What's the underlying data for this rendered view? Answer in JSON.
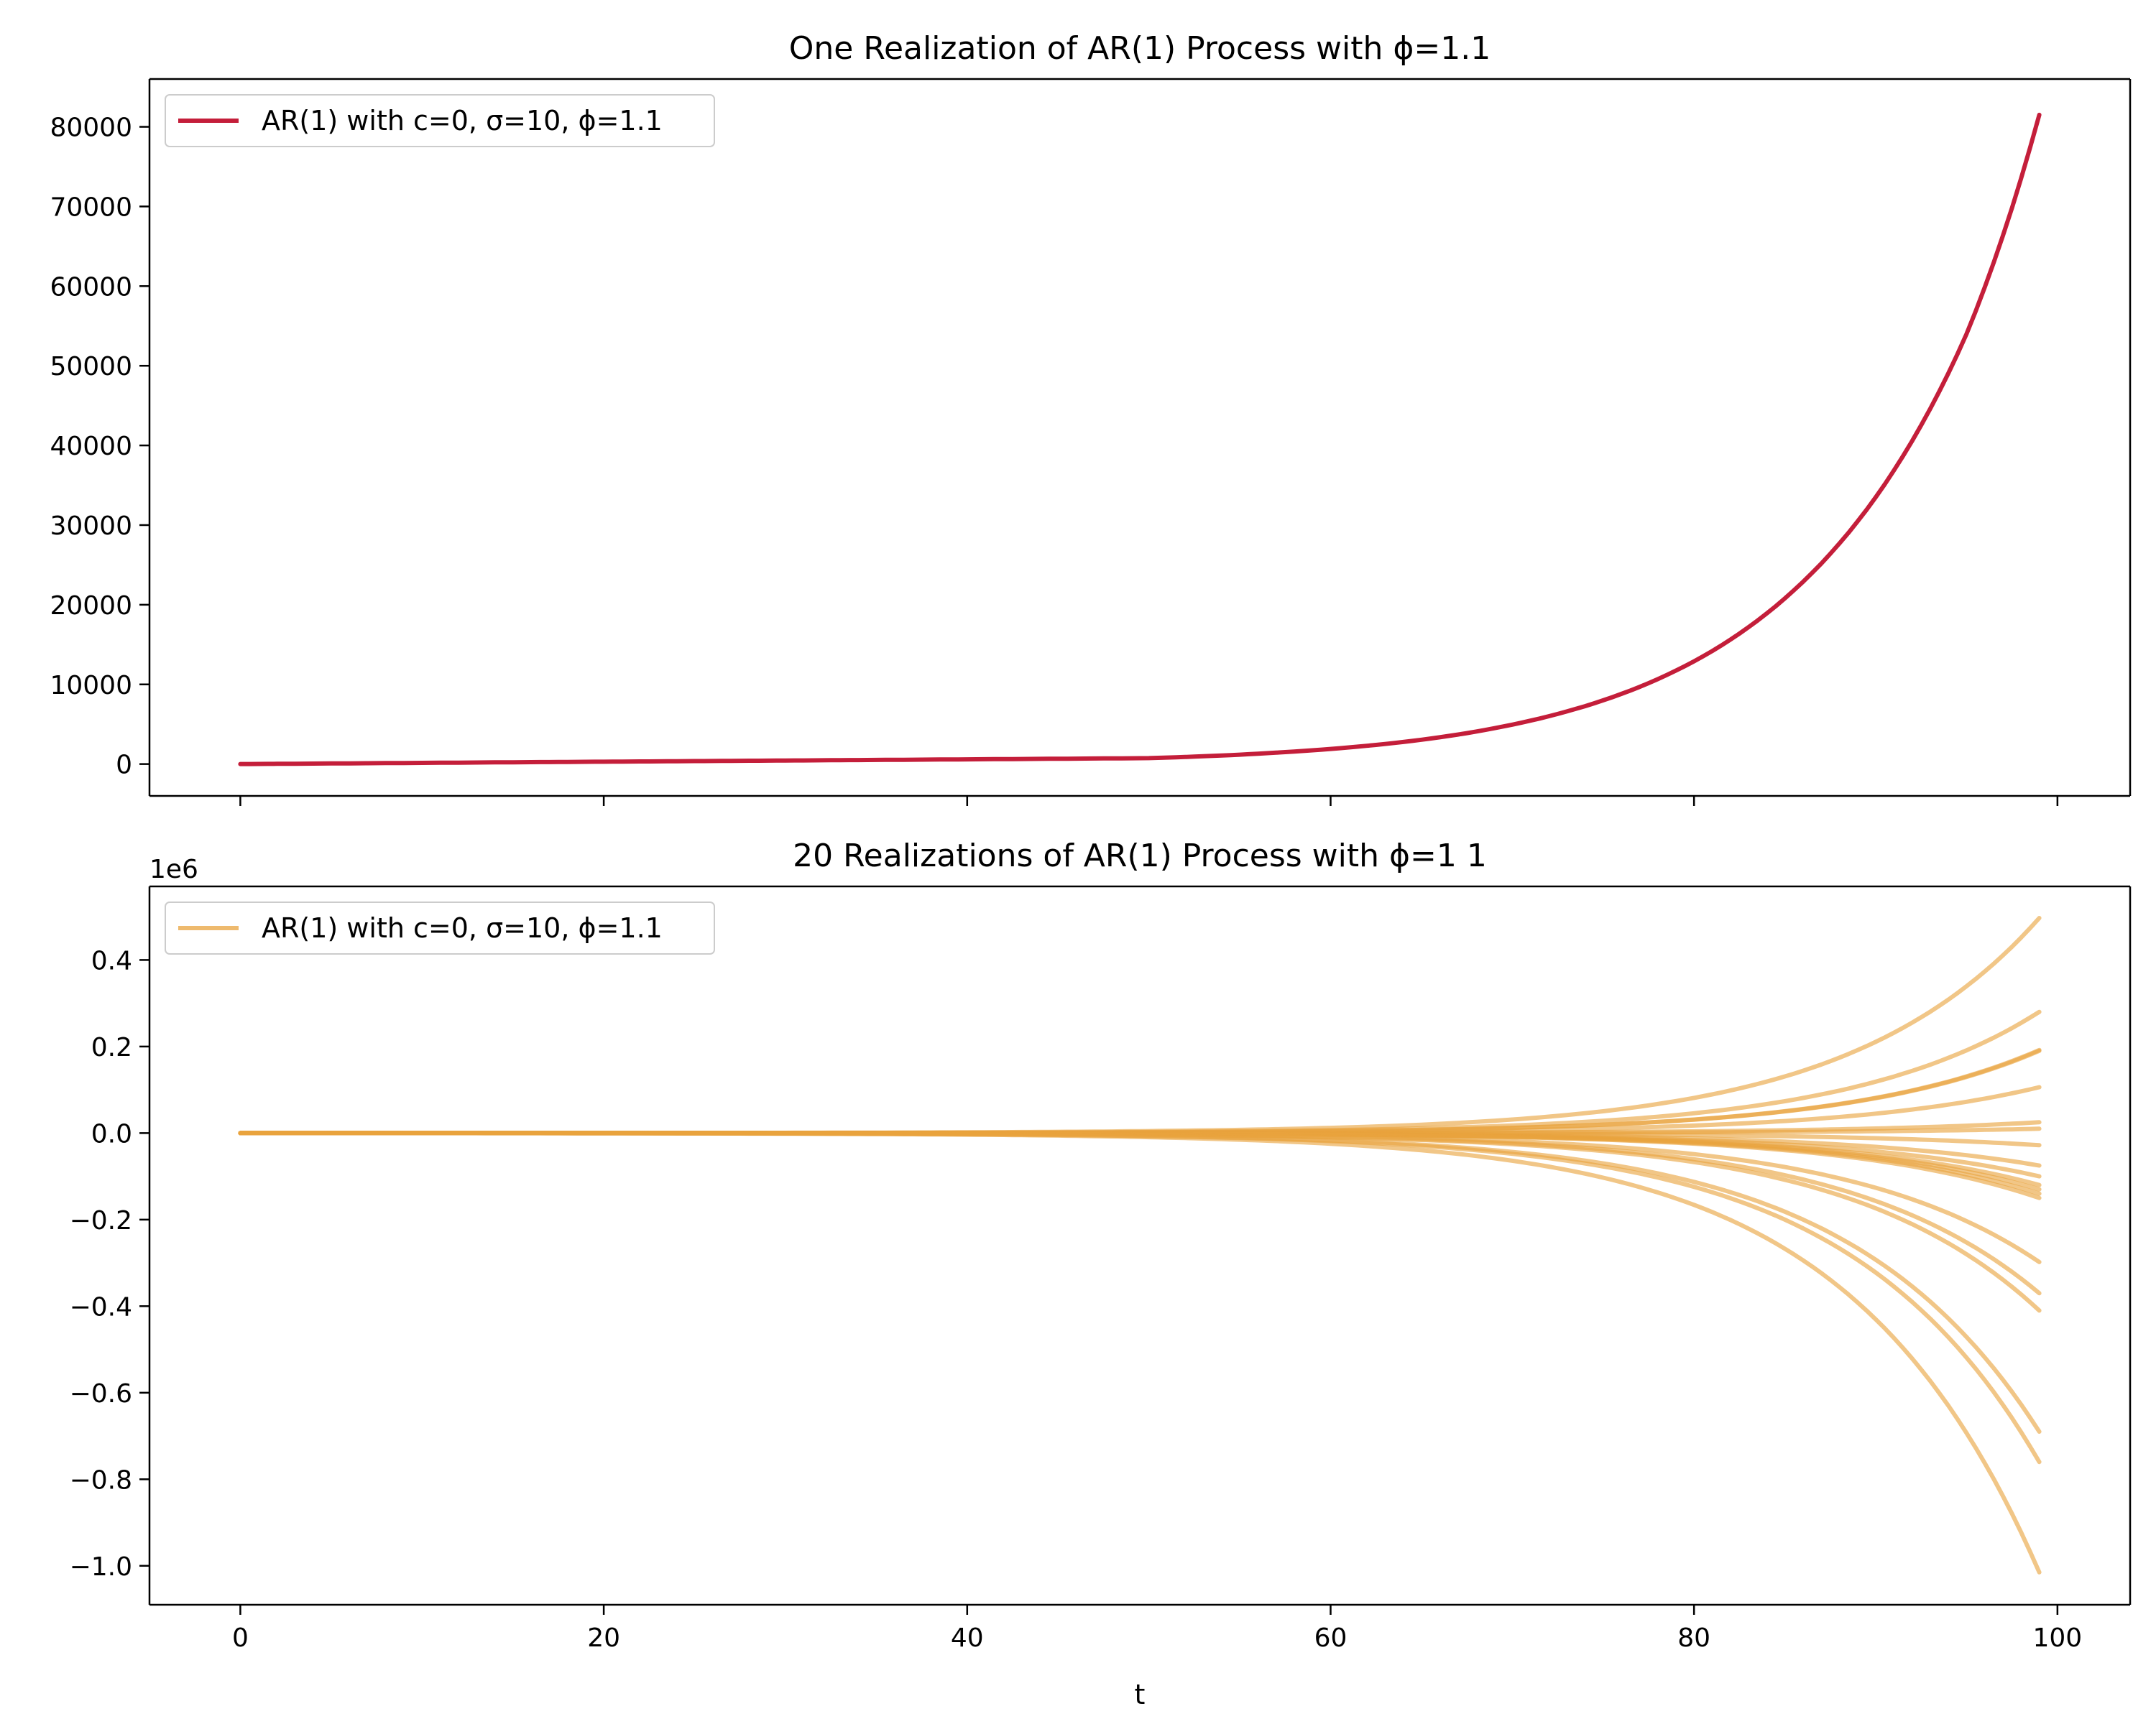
{
  "chart_data": [
    {
      "type": "line",
      "title": "One Realization of AR(1) Process with ϕ=1.1",
      "xlabel": "",
      "ylabel": "",
      "xlim": [
        -5,
        104
      ],
      "ylim": [
        -4000,
        86000
      ],
      "x_ticks": [
        0,
        20,
        40,
        60,
        80,
        100
      ],
      "x_tick_labels": [],
      "y_ticks": [
        0,
        10000,
        20000,
        30000,
        40000,
        50000,
        60000,
        70000,
        80000
      ],
      "y_tick_labels": [
        "0",
        "10000",
        "20000",
        "30000",
        "40000",
        "50000",
        "60000",
        "70000",
        "80000"
      ],
      "grid": false,
      "legend": {
        "position": "top-left",
        "entries": [
          {
            "label": "AR(1) with c=0, σ=10, ϕ=1.1",
            "color": "#c41e3a"
          }
        ]
      },
      "series": [
        {
          "name": "AR(1) with c=0, σ=10, ϕ=1.1",
          "color": "#c41e3a",
          "opacity": 1.0,
          "x": [
            0,
            50,
            55,
            60,
            65,
            70,
            75,
            80,
            85,
            90,
            95,
            99
          ],
          "y": [
            0,
            740,
            1180,
            1900,
            3050,
            4950,
            8000,
            12900,
            20800,
            33500,
            54000,
            81500
          ]
        }
      ]
    },
    {
      "type": "line",
      "title": "20 Realizations of AR(1) Process with ϕ=1 1",
      "xlabel": "t",
      "ylabel": "",
      "y_offset_label": "1e6",
      "xlim": [
        -5,
        104
      ],
      "ylim": [
        -1.09,
        0.57
      ],
      "x_ticks": [
        0,
        20,
        40,
        60,
        80,
        100
      ],
      "x_tick_labels": [
        "0",
        "20",
        "40",
        "60",
        "80",
        "100"
      ],
      "y_ticks": [
        0.4,
        0.2,
        0.0,
        -0.2,
        -0.4,
        -0.6,
        -0.8,
        -1.0
      ],
      "y_tick_labels": [
        "0.4",
        "0.2",
        "0.0",
        "−0.2",
        "−0.4",
        "−0.6",
        "−0.8",
        "−1.0"
      ],
      "grid": false,
      "legend": {
        "position": "top-left",
        "entries": [
          {
            "label": "AR(1) with c=0, σ=10, ϕ=1.1",
            "color": "#e8a33d"
          }
        ]
      },
      "line_color": "#e8a33d",
      "line_opacity": 0.62,
      "x_end": 99,
      "final_values": [
        0.497,
        0.28,
        0.192,
        0.19,
        0.106,
        0.025,
        0.01,
        -0.028,
        -0.075,
        -0.1,
        -0.12,
        -0.13,
        -0.14,
        -0.15,
        -0.298,
        -0.37,
        -0.41,
        -0.69,
        -0.76,
        -1.015
      ]
    }
  ]
}
